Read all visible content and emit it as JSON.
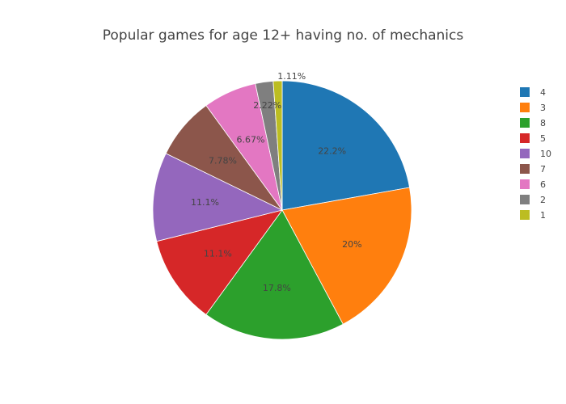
{
  "chart_data": {
    "type": "pie",
    "title": "Popular games for age 12+ having no. of mechanics",
    "direction": "clockwise",
    "start_angle_deg": 90,
    "legend_placement": "right",
    "slices": [
      {
        "label": "4",
        "value": 22.2,
        "text": "22.2%",
        "color": "#1f77b4",
        "text_position": "inside"
      },
      {
        "label": "3",
        "value": 20.0,
        "text": "20%",
        "color": "#ff7f0e",
        "text_position": "inside"
      },
      {
        "label": "8",
        "value": 17.8,
        "text": "17.8%",
        "color": "#2ca02c",
        "text_position": "inside"
      },
      {
        "label": "5",
        "value": 11.1,
        "text": "11.1%",
        "color": "#d62728",
        "text_position": "inside"
      },
      {
        "label": "10",
        "value": 11.1,
        "text": "11.1%",
        "color": "#9467bd",
        "text_position": "inside"
      },
      {
        "label": "7",
        "value": 7.78,
        "text": "7.78%",
        "color": "#8c564b",
        "text_position": "inside"
      },
      {
        "label": "6",
        "value": 6.67,
        "text": "6.67%",
        "color": "#e377c2",
        "text_position": "inside"
      },
      {
        "label": "2",
        "value": 2.22,
        "text": "2.22%",
        "color": "#7f7f7f",
        "text_position": "inside"
      },
      {
        "label": "1",
        "value": 1.11,
        "text": "1.11%",
        "color": "#bcbd22",
        "text_position": "outside"
      }
    ]
  }
}
